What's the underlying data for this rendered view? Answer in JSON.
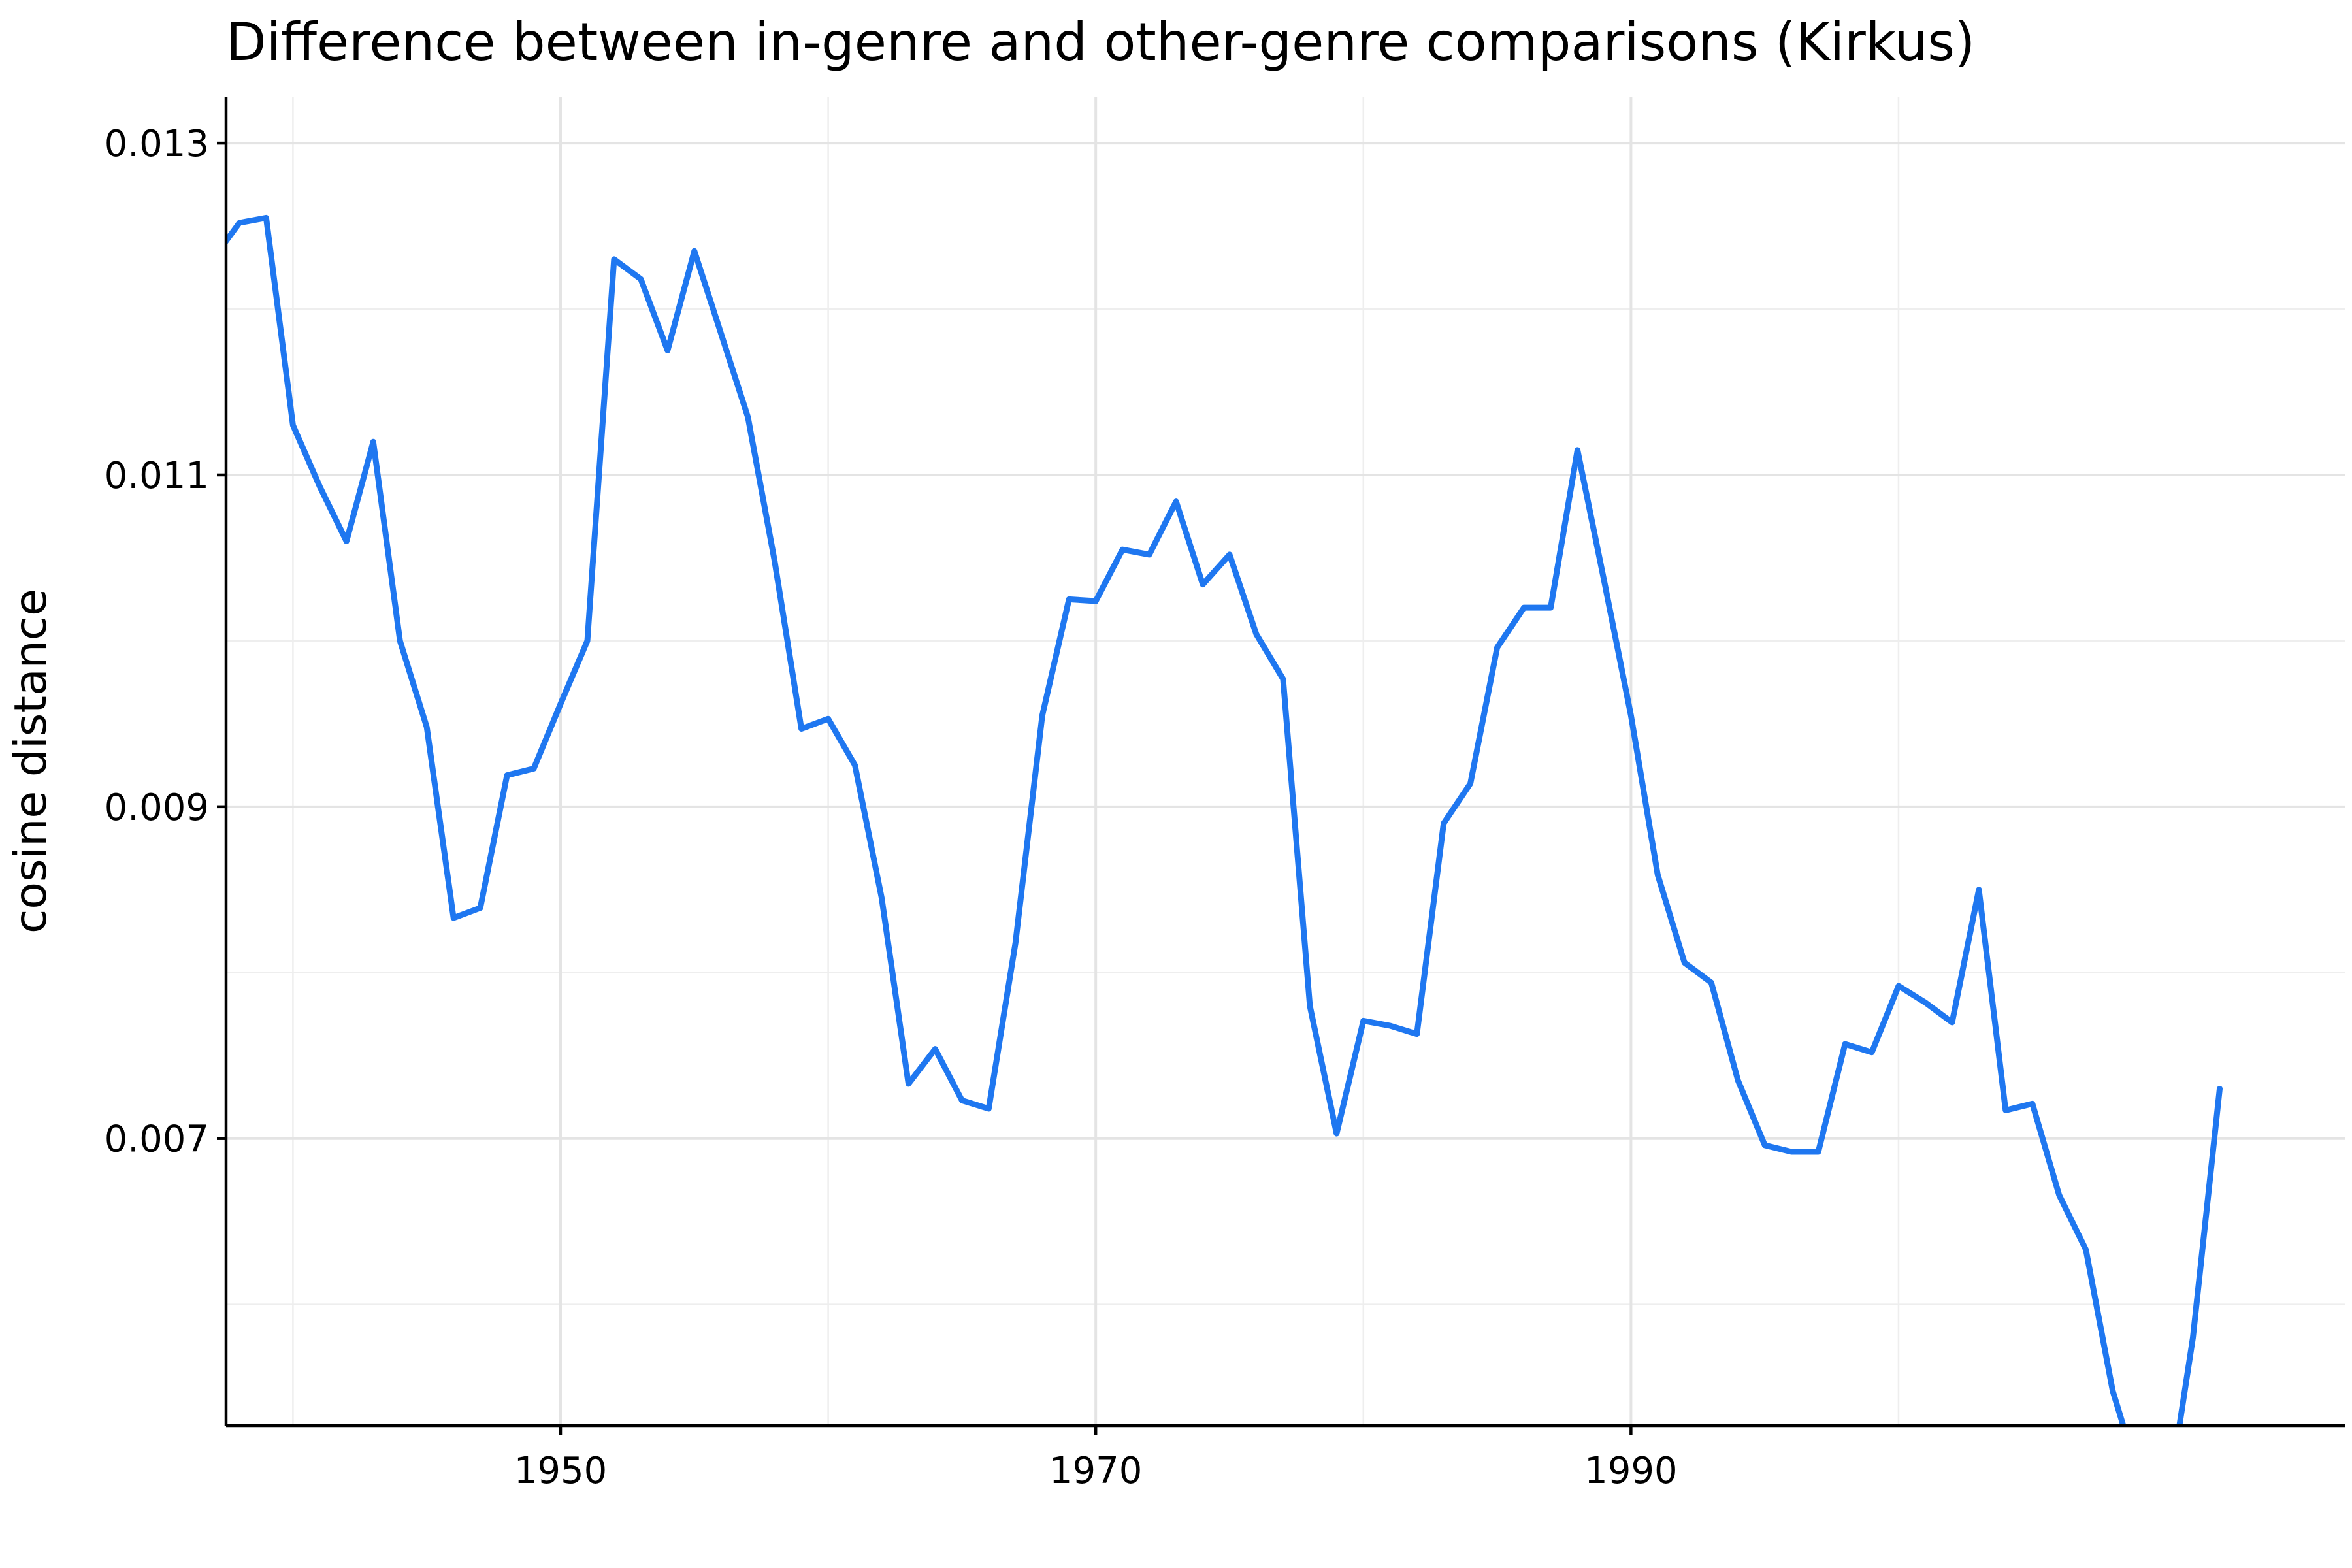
{
  "chart_data": {
    "type": "line",
    "title": "Difference between in-genre and other-genre comparisons (Kirkus)",
    "xlabel": "",
    "ylabel": "cosine distance",
    "xlim": [
      1937.5,
      2016.7
    ],
    "ylim": [
      0.00527,
      0.01328
    ],
    "x_major_ticks": [
      1950,
      1970,
      1990
    ],
    "x_minor_ticks": [
      1940,
      1960,
      1980,
      2000
    ],
    "y_major_ticks": [
      0.007,
      0.009,
      0.011,
      0.013
    ],
    "y_tick_labels": [
      "0.007",
      "0.009",
      "0.011",
      "0.013"
    ],
    "y_minor_ticks": [
      0.006,
      0.008,
      0.01,
      0.012
    ],
    "grid": true,
    "series": [
      {
        "color": "#1f77f0",
        "x": [
          1936,
          1937,
          1938,
          1939,
          1940,
          1941,
          1942,
          1943,
          1944,
          1945,
          1946,
          1947,
          1948,
          1949,
          1950,
          1951,
          1952,
          1953,
          1954,
          1955,
          1956,
          1957,
          1958,
          1959,
          1960,
          1961,
          1962,
          1963,
          1964,
          1965,
          1966,
          1967,
          1968,
          1969,
          1970,
          1971,
          1972,
          1973,
          1974,
          1975,
          1976,
          1977,
          1978,
          1979,
          1980,
          1981,
          1982,
          1983,
          1984,
          1985,
          1986,
          1987,
          1988,
          1989,
          1990,
          1991,
          1992,
          1993,
          1994,
          1995,
          1996,
          1997,
          1998,
          1999,
          2000,
          2001,
          2002,
          2003,
          2004,
          2005,
          2006,
          2007,
          2008,
          2009,
          2010,
          2011,
          2012
        ],
        "values": [
          0.0129,
          0.0123,
          0.01252,
          0.01255,
          0.0113,
          0.01093,
          0.0106,
          0.0112,
          0.01,
          0.00948,
          0.00833,
          0.00839,
          0.00919,
          0.00923,
          0.00962,
          0.01,
          0.0123,
          0.01218,
          0.01175,
          0.01235,
          0.01185,
          0.01135,
          0.01048,
          0.00947,
          0.00953,
          0.00925,
          0.00845,
          0.00733,
          0.00754,
          0.00723,
          0.00718,
          0.00818,
          0.00955,
          0.01025,
          0.01024,
          0.01055,
          0.01052,
          0.01084,
          0.01034,
          0.01052,
          0.01004,
          0.00977,
          0.0078,
          0.00703,
          0.00771,
          0.00768,
          0.00763,
          0.0089,
          0.00914,
          0.00996,
          0.0102,
          0.0102,
          0.01115,
          0.01036,
          0.00955,
          0.00859,
          0.00806,
          0.00794,
          0.00735,
          0.00696,
          0.00692,
          0.00692,
          0.00757,
          0.00752,
          0.00792,
          0.00782,
          0.0077,
          0.0085,
          0.00717,
          0.00721,
          0.00666,
          0.00633,
          0.00548,
          0.00495,
          0.00475,
          0.0058,
          0.0073
        ]
      }
    ]
  }
}
